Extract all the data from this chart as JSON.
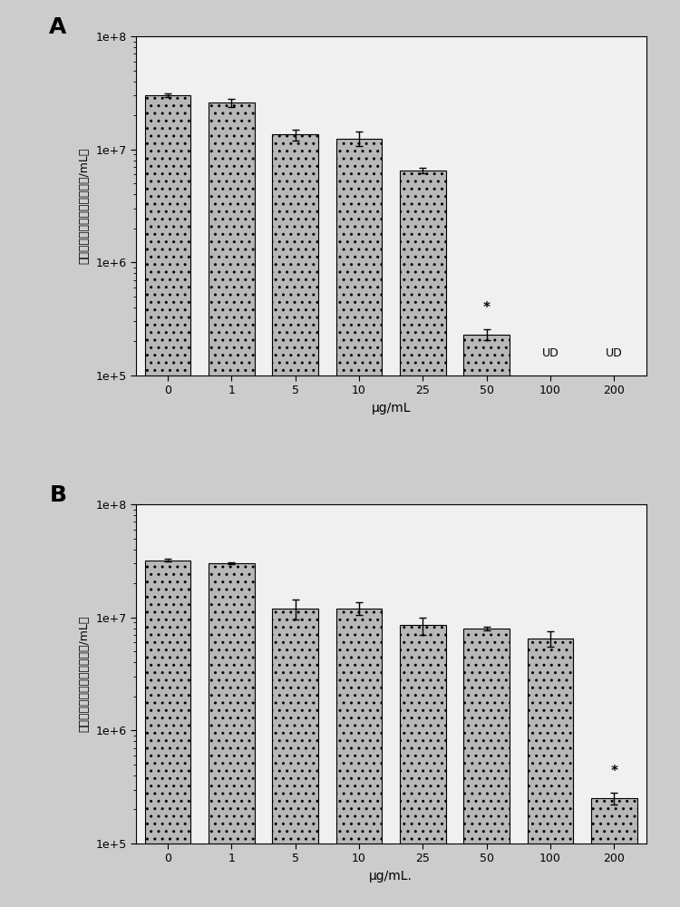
{
  "panel_A": {
    "categories": [
      "0",
      "1",
      "5",
      "10",
      "25",
      "50",
      "100",
      "200"
    ],
    "values": [
      30000000.0,
      26000000.0,
      13500000.0,
      12500000.0,
      6500000.0,
      230000.0,
      null,
      null
    ],
    "errors": [
      1200000.0,
      2200000.0,
      1500000.0,
      1800000.0,
      400000.0,
      25000.0,
      null,
      null
    ],
    "ud_labels": [
      "100",
      "200"
    ],
    "star_bar": "50",
    "ylabel": "疯疮丙酸杆菌（菌落形成单位/mL）",
    "xlabel": "μg/mL",
    "panel_label": "A",
    "ylim": [
      100000.0,
      100000000.0
    ],
    "yticks": [
      100000.0,
      1000000.0,
      10000000.0,
      100000000.0
    ],
    "ytick_labels": [
      "1e+5",
      "1e+6",
      "1e+7",
      "1e+8"
    ]
  },
  "panel_B": {
    "categories": [
      "0",
      "1",
      "5",
      "10",
      "25",
      "50",
      "100",
      "200"
    ],
    "values": [
      32000000.0,
      30000000.0,
      12000000.0,
      12000000.0,
      8500000.0,
      8000000.0,
      6500000.0,
      250000.0
    ],
    "errors": [
      1000000.0,
      500000.0,
      2500000.0,
      1500000.0,
      1500000.0,
      300000.0,
      1000000.0,
      30000.0
    ],
    "star_bar": "200",
    "ylabel": "疯疮丙酸杆菌（菌落形成单位/mL）",
    "xlabel": "μg/mL.",
    "panel_label": "B",
    "ylim": [
      100000.0,
      100000000.0
    ],
    "yticks": [
      100000.0,
      1000000.0,
      10000000.0,
      100000000.0
    ],
    "ytick_labels": [
      "1e+5",
      "1e+6",
      "1e+7",
      "1e+8"
    ]
  },
  "bar_color": "#b8b8b8",
  "bar_edgecolor": "#000000",
  "background_color": "#f0f0f0",
  "fig_background": "#cccccc"
}
